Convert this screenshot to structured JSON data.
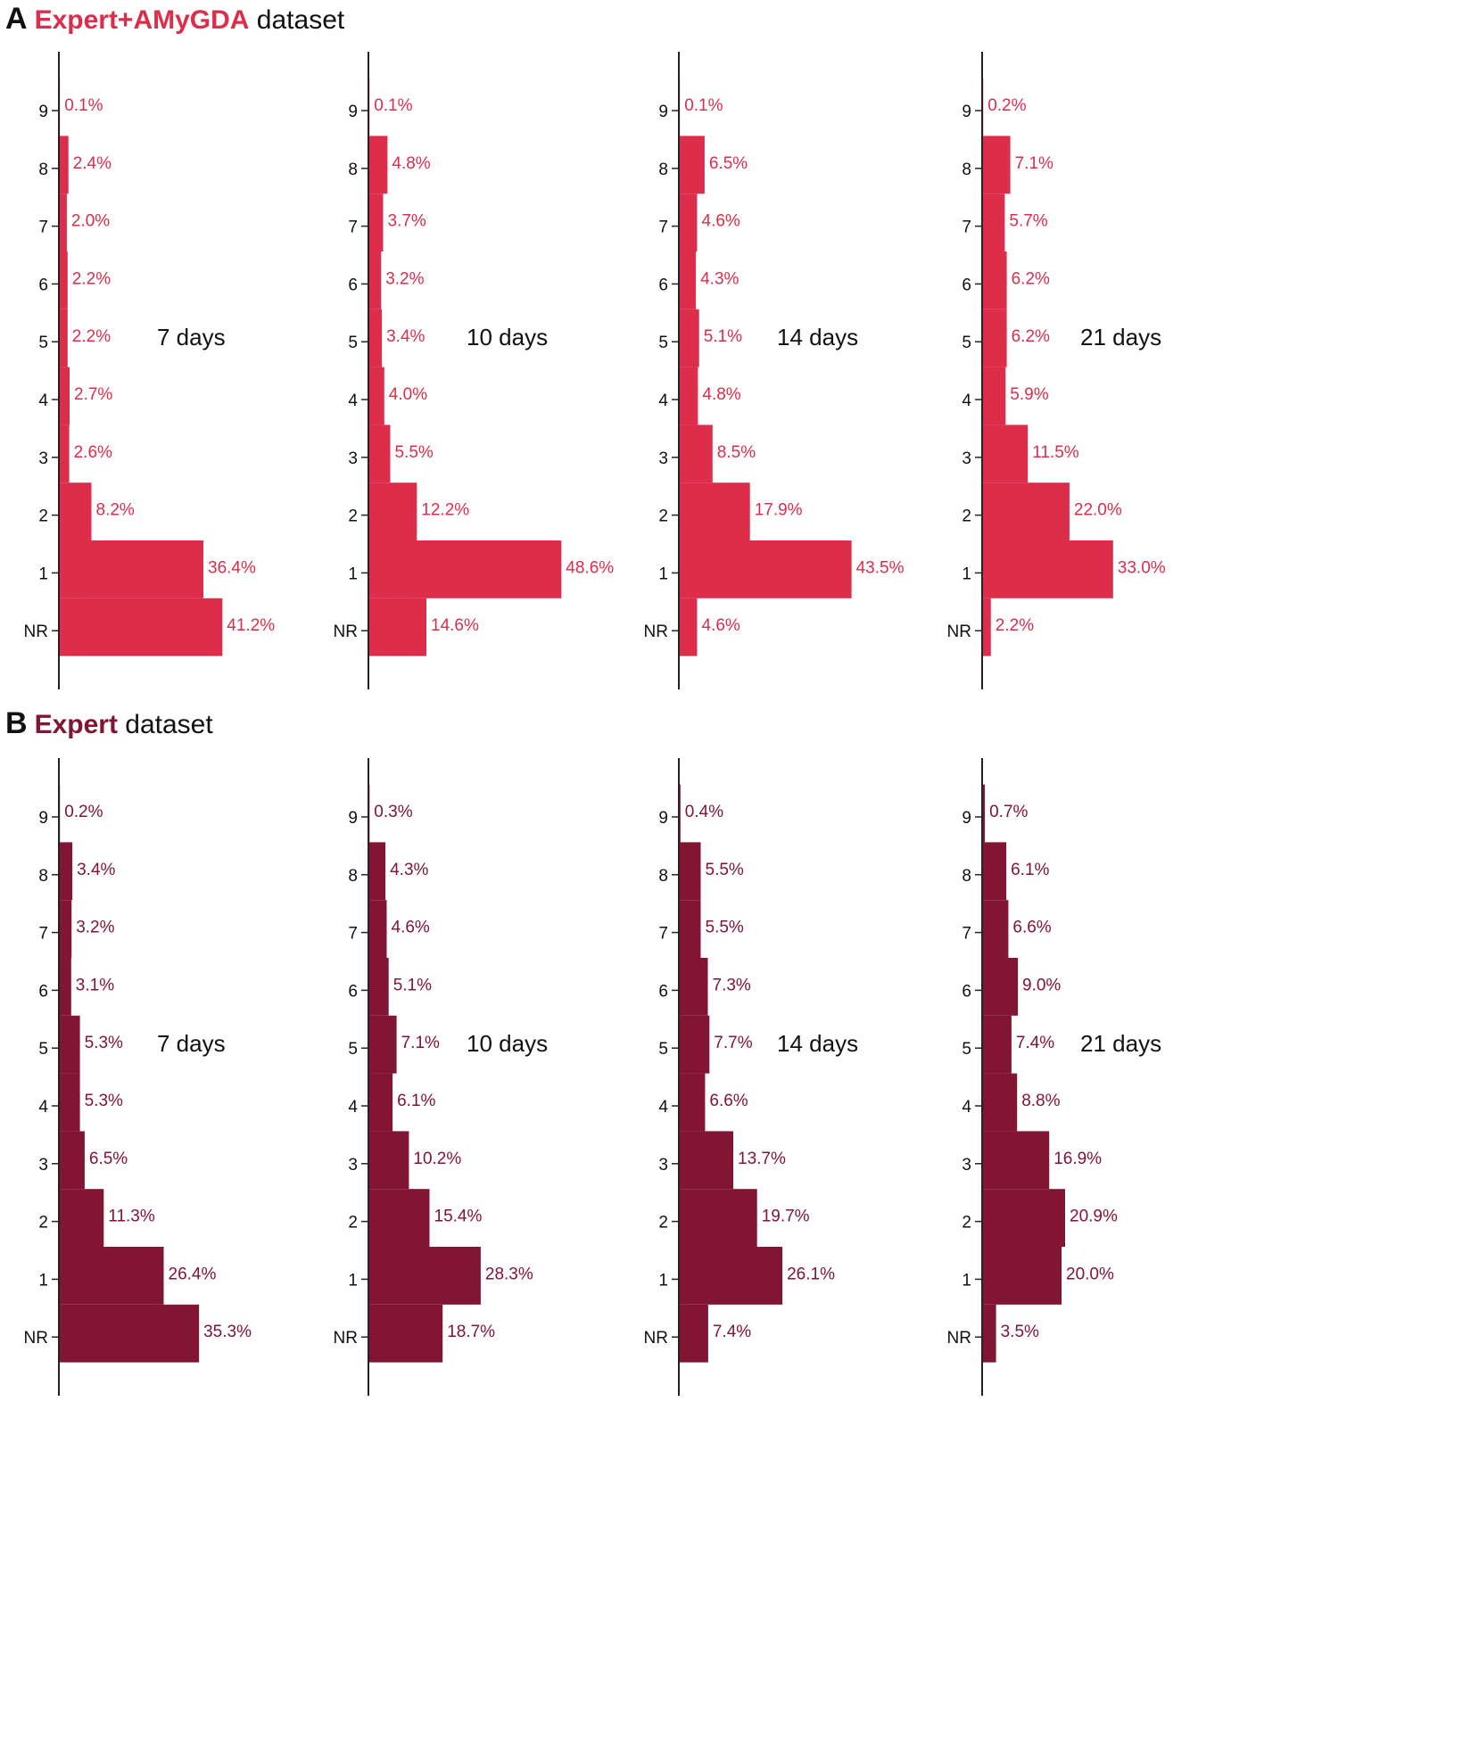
{
  "colors": {
    "panel_A": "#dc2d4b",
    "panel_B": "#821434",
    "axis": "#222222",
    "text": "#111111"
  },
  "sections": [
    {
      "letter": "A",
      "name": "Expert+AMyGDA",
      "suffix": " dataset",
      "color": "#dc2d4b"
    },
    {
      "letter": "B",
      "name": "Expert",
      "suffix": " dataset",
      "color": "#821434"
    }
  ],
  "chart_data": [
    {
      "type": "bar",
      "panel": "A",
      "orientation": "horizontal",
      "title": "7 days",
      "categories": [
        "9",
        "8",
        "7",
        "6",
        "5",
        "4",
        "3",
        "2",
        "1",
        "NR"
      ],
      "values": [
        0.1,
        2.4,
        2.0,
        2.2,
        2.2,
        2.7,
        2.6,
        8.2,
        36.4,
        41.2
      ],
      "labels": [
        "0.1%",
        "2.4%",
        "2.0%",
        "2.2%",
        "2.2%",
        "2.7%",
        "2.6%",
        "8.2%",
        "36.4%",
        "41.2%"
      ]
    },
    {
      "type": "bar",
      "panel": "A",
      "orientation": "horizontal",
      "title": "10 days",
      "categories": [
        "9",
        "8",
        "7",
        "6",
        "5",
        "4",
        "3",
        "2",
        "1",
        "NR"
      ],
      "values": [
        0.1,
        4.8,
        3.7,
        3.2,
        3.4,
        4.0,
        5.5,
        12.2,
        48.6,
        14.6
      ],
      "labels": [
        "0.1%",
        "4.8%",
        "3.7%",
        "3.2%",
        "3.4%",
        "4.0%",
        "5.5%",
        "12.2%",
        "48.6%",
        "14.6%"
      ]
    },
    {
      "type": "bar",
      "panel": "A",
      "orientation": "horizontal",
      "title": "14 days",
      "categories": [
        "9",
        "8",
        "7",
        "6",
        "5",
        "4",
        "3",
        "2",
        "1",
        "NR"
      ],
      "values": [
        0.1,
        6.5,
        4.6,
        4.3,
        5.1,
        4.8,
        8.5,
        17.9,
        43.5,
        4.6
      ],
      "labels": [
        "0.1%",
        "6.5%",
        "4.6%",
        "4.3%",
        "5.1%",
        "4.8%",
        "8.5%",
        "17.9%",
        "43.5%",
        "4.6%"
      ]
    },
    {
      "type": "bar",
      "panel": "A",
      "orientation": "horizontal",
      "title": "21 days",
      "categories": [
        "9",
        "8",
        "7",
        "6",
        "5",
        "4",
        "3",
        "2",
        "1",
        "NR"
      ],
      "values": [
        0.2,
        7.1,
        5.7,
        6.2,
        6.2,
        5.9,
        11.5,
        22.0,
        33.0,
        2.2
      ],
      "labels": [
        "0.2%",
        "7.1%",
        "5.7%",
        "6.2%",
        "6.2%",
        "5.9%",
        "11.5%",
        "22.0%",
        "33.0%",
        "2.2%"
      ]
    },
    {
      "type": "bar",
      "panel": "B",
      "orientation": "horizontal",
      "title": "7 days",
      "categories": [
        "9",
        "8",
        "7",
        "6",
        "5",
        "4",
        "3",
        "2",
        "1",
        "NR"
      ],
      "values": [
        0.2,
        3.4,
        3.2,
        3.1,
        5.3,
        5.3,
        6.5,
        11.3,
        26.4,
        35.3
      ],
      "labels": [
        "0.2%",
        "3.4%",
        "3.2%",
        "3.1%",
        "5.3%",
        "5.3%",
        "6.5%",
        "11.3%",
        "26.4%",
        "35.3%"
      ]
    },
    {
      "type": "bar",
      "panel": "B",
      "orientation": "horizontal",
      "title": "10 days",
      "categories": [
        "9",
        "8",
        "7",
        "6",
        "5",
        "4",
        "3",
        "2",
        "1",
        "NR"
      ],
      "values": [
        0.3,
        4.3,
        4.6,
        5.1,
        7.1,
        6.1,
        10.2,
        15.4,
        28.3,
        18.7
      ],
      "labels": [
        "0.3%",
        "4.3%",
        "4.6%",
        "5.1%",
        "7.1%",
        "6.1%",
        "10.2%",
        "15.4%",
        "28.3%",
        "18.7%"
      ]
    },
    {
      "type": "bar",
      "panel": "B",
      "orientation": "horizontal",
      "title": "14 days",
      "categories": [
        "9",
        "8",
        "7",
        "6",
        "5",
        "4",
        "3",
        "2",
        "1",
        "NR"
      ],
      "values": [
        0.4,
        5.5,
        5.5,
        7.3,
        7.7,
        6.6,
        13.7,
        19.7,
        26.1,
        7.4
      ],
      "labels": [
        "0.4%",
        "5.5%",
        "5.5%",
        "7.3%",
        "7.7%",
        "6.6%",
        "13.7%",
        "19.7%",
        "26.1%",
        "7.4%"
      ]
    },
    {
      "type": "bar",
      "panel": "B",
      "orientation": "horizontal",
      "title": "21 days",
      "categories": [
        "9",
        "8",
        "7",
        "6",
        "5",
        "4",
        "3",
        "2",
        "1",
        "NR"
      ],
      "values": [
        0.7,
        6.1,
        6.6,
        9.0,
        7.4,
        8.8,
        16.9,
        20.9,
        20.0,
        3.5
      ],
      "labels": [
        "0.7%",
        "6.1%",
        "6.6%",
        "9.0%",
        "7.4%",
        "8.8%",
        "16.9%",
        "20.9%",
        "20.0%",
        "3.5%"
      ]
    }
  ]
}
